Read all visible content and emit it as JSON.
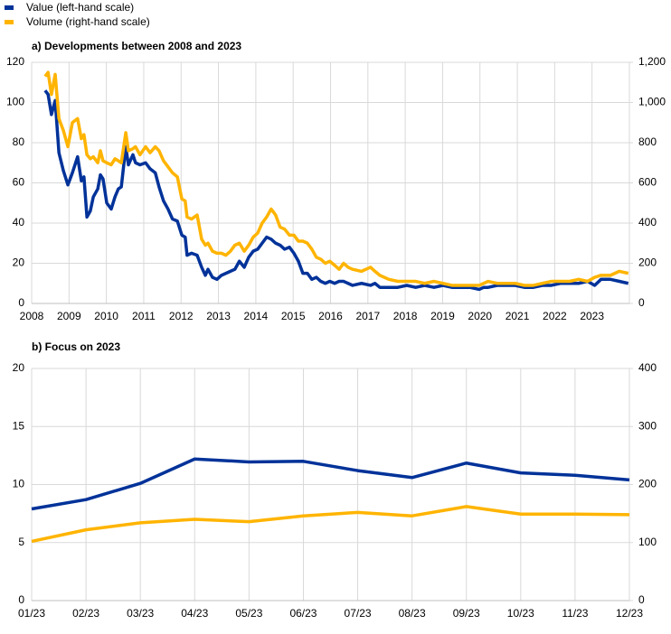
{
  "chart_data": [
    {
      "type": "line",
      "title": "a) Developments between 2008 and 2023",
      "x": [
        2008.36,
        2008.44,
        2008.53,
        2008.63,
        2008.73,
        2008.85,
        2008.97,
        2009.09,
        2009.23,
        2009.33,
        2009.4,
        2009.48,
        2009.57,
        2009.65,
        2009.77,
        2009.84,
        2009.91,
        2010.01,
        2010.13,
        2010.23,
        2010.32,
        2010.4,
        2010.52,
        2010.59,
        2010.71,
        2010.78,
        2010.9,
        2011.05,
        2011.17,
        2011.31,
        2011.41,
        2011.53,
        2011.65,
        2011.77,
        2011.9,
        2012.02,
        2012.11,
        2012.16,
        2012.28,
        2012.43,
        2012.55,
        2012.65,
        2012.72,
        2012.84,
        2012.96,
        2013.08,
        2013.2,
        2013.32,
        2013.44,
        2013.56,
        2013.69,
        2013.81,
        2013.93,
        2014.05,
        2014.17,
        2014.29,
        2014.41,
        2014.53,
        2014.65,
        2014.77,
        2014.9,
        2015.02,
        2015.14,
        2015.26,
        2015.38,
        2015.5,
        2015.62,
        2015.74,
        2015.86,
        2015.98,
        2016.11,
        2016.23,
        2016.35,
        2016.47,
        2016.59,
        2016.83,
        2017.07,
        2017.19,
        2017.32,
        2017.56,
        2017.8,
        2018.04,
        2018.28,
        2018.52,
        2018.77,
        2019.01,
        2019.25,
        2019.49,
        2019.73,
        2019.98,
        2020.1,
        2020.22,
        2020.46,
        2020.7,
        2020.94,
        2021.19,
        2021.43,
        2021.67,
        2021.91,
        2022.15,
        2022.4,
        2022.64,
        2022.88,
        2023.07,
        2023.24,
        2023.49,
        2023.73,
        2023.97
      ],
      "series": [
        {
          "name": "Value (left-hand scale)",
          "color": "#003299",
          "values": [
            106,
            104,
            94,
            101,
            75,
            66,
            59,
            65,
            73,
            61,
            63,
            43,
            46,
            53,
            57,
            64,
            62,
            50,
            47,
            53,
            57,
            58,
            78,
            69,
            74,
            70,
            69,
            70,
            67,
            65,
            58,
            51,
            47,
            42,
            41,
            34,
            33,
            24,
            25,
            24,
            18,
            14,
            17,
            13,
            12,
            14,
            15,
            16,
            17,
            21,
            18,
            23,
            26,
            27,
            30,
            33,
            32,
            30,
            29,
            27,
            28,
            25,
            21,
            15,
            15,
            12,
            13,
            11,
            10,
            11,
            10,
            11,
            11,
            10,
            9,
            10,
            9,
            10,
            8,
            8,
            8,
            9,
            8,
            9,
            8,
            9,
            8,
            8,
            8,
            7,
            8,
            8,
            9,
            9,
            9,
            8,
            8,
            9,
            9,
            10,
            10,
            10,
            11,
            9,
            12,
            12,
            11,
            10
          ]
        },
        {
          "name": "Volume (right-hand scale)",
          "color": "#ffb400",
          "axis": "y2",
          "values": [
            1130,
            1150,
            1040,
            1140,
            920,
            860,
            780,
            900,
            920,
            820,
            840,
            740,
            720,
            730,
            700,
            760,
            710,
            700,
            690,
            720,
            710,
            700,
            850,
            760,
            770,
            780,
            740,
            780,
            750,
            780,
            760,
            710,
            680,
            650,
            630,
            520,
            510,
            430,
            420,
            440,
            320,
            290,
            300,
            260,
            250,
            250,
            240,
            260,
            290,
            300,
            260,
            290,
            330,
            350,
            400,
            430,
            470,
            440,
            380,
            370,
            340,
            340,
            310,
            310,
            300,
            270,
            230,
            220,
            200,
            210,
            190,
            170,
            200,
            180,
            170,
            160,
            180,
            160,
            140,
            120,
            110,
            110,
            110,
            100,
            110,
            100,
            90,
            90,
            90,
            90,
            100,
            110,
            100,
            100,
            100,
            90,
            90,
            100,
            110,
            110,
            110,
            120,
            110,
            130,
            140,
            140,
            160,
            150
          ]
        }
      ],
      "xlim": [
        2008,
        2024
      ],
      "xticks": [
        2008,
        2009,
        2010,
        2011,
        2012,
        2013,
        2014,
        2015,
        2016,
        2017,
        2018,
        2019,
        2020,
        2021,
        2022,
        2023
      ],
      "ylim": [
        0,
        120
      ],
      "yticks": [
        0,
        20,
        40,
        60,
        80,
        100,
        120
      ],
      "y2lim": [
        0,
        1200
      ],
      "y2ticks": [
        0,
        200,
        400,
        600,
        800,
        {
          "value": 1000,
          "label": "1,000"
        },
        {
          "value": 1200,
          "label": "1,200"
        }
      ],
      "grid": true
    },
    {
      "type": "line",
      "title": "b) Focus on 2023",
      "categories": [
        "01/23",
        "02/23",
        "03/23",
        "04/23",
        "05/23",
        "06/23",
        "07/23",
        "08/23",
        "09/23",
        "10/23",
        "11/23",
        "12/23"
      ],
      "series": [
        {
          "color": "#003299",
          "values": [
            7.9,
            8.7,
            10.1,
            12.2,
            11.95,
            12.0,
            11.2,
            10.6,
            11.85,
            11.0,
            10.8,
            10.4
          ]
        },
        {
          "color": "#ffb400",
          "axis": "y2",
          "values": [
            102,
            122,
            134,
            140,
            136,
            146,
            152,
            146,
            162,
            149,
            149,
            148
          ]
        }
      ],
      "ylim": [
        0,
        20
      ],
      "yticks": [
        0,
        5,
        10,
        15,
        20
      ],
      "y2lim": [
        0,
        400
      ],
      "y2ticks": [
        0,
        100,
        200,
        300,
        400
      ],
      "grid": true
    }
  ]
}
